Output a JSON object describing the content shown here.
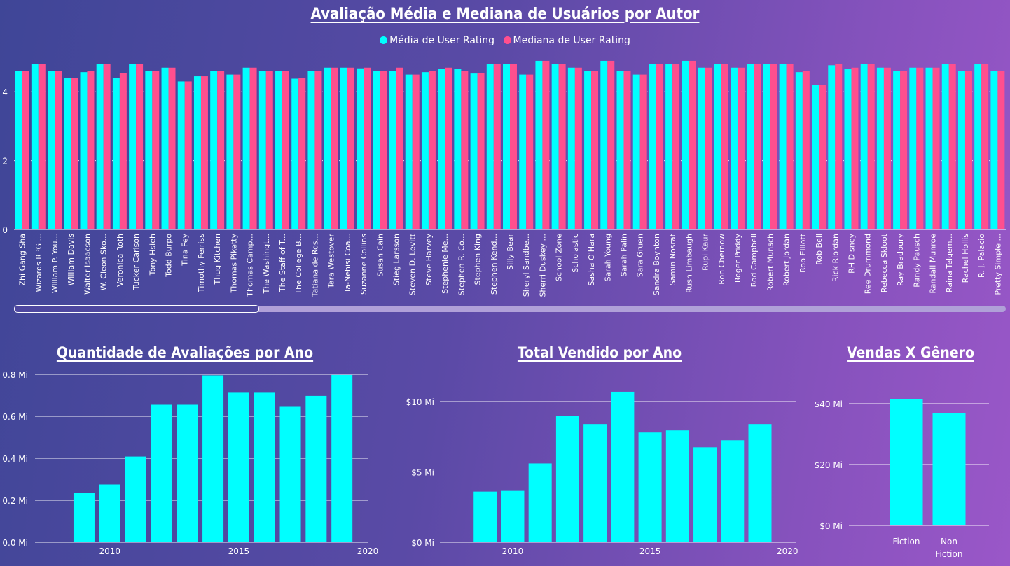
{
  "chart_data": [
    {
      "type": "bar",
      "title": "Avaliação Média e Mediana de Usuários por Autor",
      "ylim": [
        0,
        5
      ],
      "yticks": [
        0,
        2,
        4
      ],
      "legend": "top-center",
      "grid": true,
      "categories": [
        "Zhi Gang Sha",
        "Wizards RPG ...",
        "William P. You...",
        "William Davis",
        "Walter Isaacson",
        "W. Cleon Sko...",
        "Veronica Roth",
        "Tucker Carlson",
        "Tony Hsieh",
        "Todd Burpo",
        "Tina Fey",
        "Timothy Ferriss",
        "Thug Kitchen",
        "Thomas Piketty",
        "Thomas Camp...",
        "The Washingt...",
        "The Staff of T...",
        "The College B...",
        "Tatiana de Ros...",
        "Tara Westover",
        "Ta-Nehisi Coa...",
        "Suzanne Collins",
        "Susan Cain",
        "Stieg Larsson",
        "Steven D. Levitt",
        "Steve Harvey",
        "Stephenie Me...",
        "Stephen R. Co...",
        "Stephen King",
        "Stephen Kend...",
        "Silly Bear",
        "Sheryl Sandbe...",
        "Sherri Duskey ...",
        "School Zone",
        "Scholastic",
        "Sasha O'Hara",
        "Sarah Young",
        "Sarah Palin",
        "Sara Gruen",
        "Sandra Boynton",
        "Samin Nosrat",
        "Rush Limbaugh",
        "Rupi Kaur",
        "Ron Chernow",
        "Roger Priddy",
        "Rod Campbell",
        "Robert Munsch",
        "Robert Jordan",
        "Rob Elliott",
        "Rob Bell",
        "Rick Riordan",
        "RH Disney",
        "Ree Drummond",
        "Rebecca Skloot",
        "Ray Bradbury",
        "Randy Pausch",
        "Randall Munroe",
        "Raina Telgem...",
        "Rachel Hollis",
        "R. J. Palacio",
        "Pretty Simple ..."
      ],
      "series": [
        {
          "name": "Média de User Rating",
          "color": "#00ffff",
          "values": [
            4.6,
            4.8,
            4.6,
            4.4,
            4.57,
            4.8,
            4.4,
            4.8,
            4.6,
            4.7,
            4.3,
            4.45,
            4.6,
            4.5,
            4.7,
            4.6,
            4.6,
            4.38,
            4.6,
            4.7,
            4.7,
            4.68,
            4.6,
            4.6,
            4.5,
            4.57,
            4.66,
            4.66,
            4.53,
            4.8,
            4.8,
            4.5,
            4.9,
            4.8,
            4.7,
            4.6,
            4.9,
            4.6,
            4.5,
            4.8,
            4.8,
            4.9,
            4.7,
            4.8,
            4.7,
            4.8,
            4.8,
            4.8,
            4.57,
            4.2,
            4.77,
            4.67,
            4.8,
            4.7,
            4.6,
            4.7,
            4.7,
            4.8,
            4.6,
            4.8,
            4.6
          ]
        },
        {
          "name": "Mediana de User Rating",
          "color": "#ff4f8e",
          "values": [
            4.6,
            4.8,
            4.6,
            4.4,
            4.6,
            4.8,
            4.55,
            4.8,
            4.6,
            4.7,
            4.3,
            4.45,
            4.6,
            4.5,
            4.7,
            4.6,
            4.6,
            4.4,
            4.6,
            4.7,
            4.7,
            4.7,
            4.6,
            4.7,
            4.5,
            4.6,
            4.7,
            4.6,
            4.55,
            4.8,
            4.8,
            4.5,
            4.9,
            4.8,
            4.7,
            4.6,
            4.9,
            4.6,
            4.5,
            4.8,
            4.8,
            4.9,
            4.7,
            4.8,
            4.7,
            4.8,
            4.8,
            4.8,
            4.6,
            4.2,
            4.8,
            4.7,
            4.8,
            4.7,
            4.6,
            4.7,
            4.7,
            4.8,
            4.6,
            4.8,
            4.6
          ]
        }
      ]
    },
    {
      "type": "bar",
      "title": "Quantidade de Avaliações por Ano",
      "x": [
        2009,
        2010,
        2011,
        2012,
        2013,
        2014,
        2015,
        2016,
        2017,
        2018,
        2019
      ],
      "values": [
        0.235,
        0.275,
        0.408,
        0.655,
        0.655,
        0.795,
        0.712,
        0.712,
        0.645,
        0.697,
        0.797
      ],
      "xlim": [
        2007.1,
        2020
      ],
      "xticks": [
        2010,
        2015,
        2020
      ],
      "ylim": [
        0,
        0.8
      ],
      "yticks": [
        0,
        0.2,
        0.4,
        0.6,
        0.8
      ],
      "ytick_labels": [
        "0.0 Mi",
        "0.2 Mi",
        "0.4 Mi",
        "0.6 Mi",
        "0.8 Mi"
      ],
      "color": "#00ffff"
    },
    {
      "type": "bar",
      "title": "Total Vendido por Ano",
      "x": [
        2009,
        2010,
        2011,
        2012,
        2013,
        2014,
        2015,
        2016,
        2017,
        2018,
        2019
      ],
      "values": [
        3.6,
        3.65,
        5.6,
        9.0,
        8.4,
        10.7,
        7.8,
        7.95,
        6.75,
        7.25,
        8.4
      ],
      "xlim": [
        2007.35,
        2020.3
      ],
      "xticks": [
        2010,
        2015,
        2020
      ],
      "ylim": [
        0,
        10
      ],
      "yticks": [
        0,
        5,
        10
      ],
      "ytick_labels": [
        "$0 Mi",
        "$5 Mi",
        "$10 Mi"
      ],
      "color": "#00ffff"
    },
    {
      "type": "bar",
      "title": "Vendas X Gênero",
      "categories": [
        [
          "Fiction"
        ],
        [
          "Non",
          "Fiction"
        ]
      ],
      "values": [
        41.5,
        37.0
      ],
      "ylim": [
        0,
        40
      ],
      "yticks": [
        0,
        20,
        40
      ],
      "ytick_labels": [
        "$0 Mi",
        "$20 Mi",
        "$40 Mi"
      ],
      "color": "#00ffff"
    }
  ]
}
